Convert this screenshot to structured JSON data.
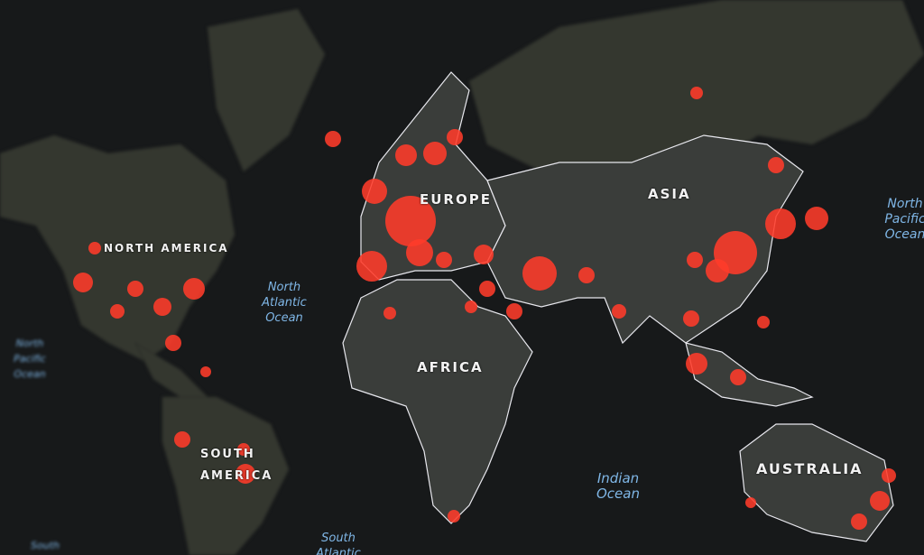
{
  "continents": {
    "north_america": "NORTH AMERICA",
    "europe": "EUROPE",
    "asia": "ASIA",
    "africa": "AFRICA",
    "south_america": "SOUTH AMERICA",
    "australia": "AUSTRALIA"
  },
  "oceans": {
    "north_atlantic": "North Atlantic Ocean",
    "indian": "Indian Ocean",
    "north_pacific_right": "North Pacific Ocean",
    "north_pacific_left": "North Pacific Ocean",
    "south_atlantic": "South Atlantic",
    "south_left": "South"
  },
  "colors": {
    "land": "#3a3d3a",
    "border": "#e8e8ee",
    "marker": "#ff3b2a",
    "ocean": "#17191a",
    "ocean_label": "#7fb6e6"
  }
}
